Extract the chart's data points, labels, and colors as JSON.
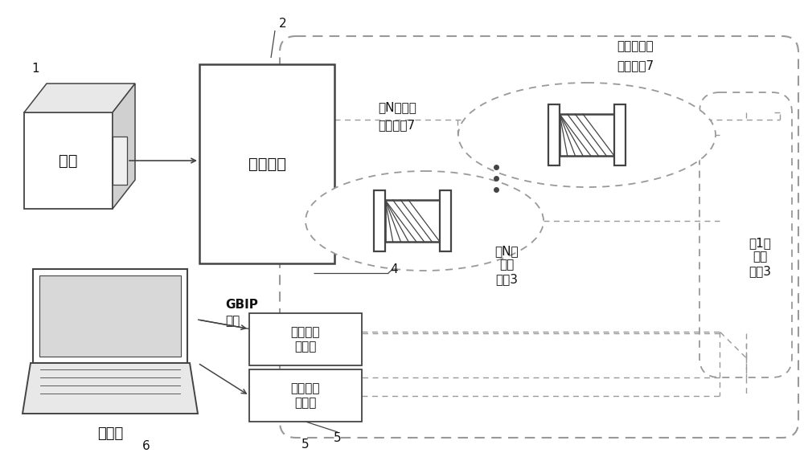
{
  "bg_color": "#ffffff",
  "lc": "#444444",
  "dc": "#999999",
  "tc": "#111111",
  "figsize": [
    10.0,
    5.79
  ],
  "dpi": 100,
  "labels": {
    "light_source": "光源",
    "splitter": "光分路器",
    "computer": "计算机",
    "power_meter": "双通道光\n功率计",
    "gbip": "GBIP\n接口",
    "ref_N_line1": "第N条参考",
    "ref_N_line2": "光路通道7",
    "ref_1_line1": "第一条参考",
    "ref_1_line2": "光路通道7",
    "test_N": "第N条\n测试\n通道3",
    "test_1": "第1条\n测试\n通道3",
    "n1": "1",
    "n2": "2",
    "n4": "4",
    "n5": "5",
    "n6": "6",
    "dots": "· · ·"
  }
}
